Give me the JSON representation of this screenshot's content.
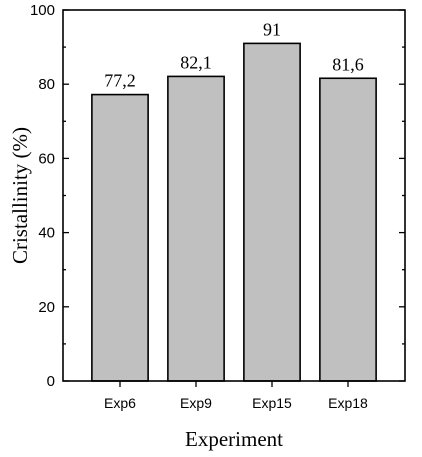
{
  "chart_data": {
    "type": "bar",
    "categories": [
      "Exp6",
      "Exp9",
      "Exp15",
      "Exp18"
    ],
    "values": [
      77.2,
      82.1,
      91,
      81.6
    ],
    "data_labels": [
      "77,2",
      "82,1",
      "91",
      "81,6"
    ],
    "title": "",
    "xlabel": "Experiment",
    "ylabel": "Cristallinity (%)",
    "ylim": [
      0,
      100
    ],
    "yticks": [
      0,
      20,
      40,
      60,
      80,
      100
    ],
    "grid": false,
    "legend": "none",
    "bar_color": "#c0c0c0",
    "edge_color": "#000000"
  }
}
